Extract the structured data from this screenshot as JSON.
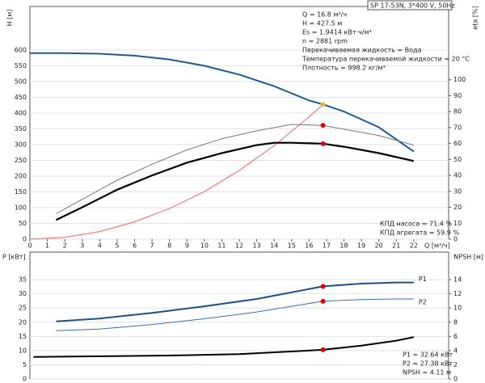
{
  "chart_data": [
    {
      "type": "line",
      "title": "SP 17-53N, 3*400 V, 50Hz",
      "annotations": [
        "Q = 16.8 м³/ч",
        "H = 427.5 м",
        "Es = 1.9414 кВт·ч/м³",
        "n = 2881 rpm",
        "Перекачиваемая жидкость = Вода",
        "Температура перекачиваемой жидкости = 20 °C",
        "Плотность = 998.2 кг/м³"
      ],
      "notes": [
        "КПД насоса = 71.4 %",
        "КПД агрегата = 59.9 %"
      ],
      "xlabel": "Q [м³/ч]",
      "ylabel": "H [м]",
      "y2label": "eta [%]",
      "xlim": [
        0,
        24
      ],
      "ylim": [
        0,
        738
      ],
      "y2lim": [
        0,
        146
      ],
      "xticks": [
        0,
        1,
        2,
        3,
        4,
        5,
        6,
        7,
        8,
        9,
        10,
        11,
        12,
        13,
        14,
        15,
        16,
        17,
        18,
        19,
        20,
        21,
        22
      ],
      "yticks": [
        0,
        50,
        100,
        150,
        200,
        250,
        300,
        350,
        400,
        450,
        500,
        550,
        600
      ],
      "y2ticks": [
        0,
        10,
        20,
        30,
        40,
        50,
        60,
        70,
        80,
        90,
        100
      ],
      "grid": true,
      "operating_x": 16.8,
      "series": [
        {
          "color": "#1f5a96",
          "width": 2,
          "marker_color": "#f5c030",
          "x": [
            0,
            2,
            4,
            6,
            8,
            10,
            12,
            14,
            16,
            16.8,
            18,
            20,
            22
          ],
          "values": [
            590,
            590,
            588,
            582,
            570,
            550,
            522,
            485,
            440,
            427.5,
            405,
            355,
            278
          ]
        },
        {
          "color": "#ff6060",
          "width": 1,
          "x": [
            0,
            2,
            4,
            6,
            8,
            10,
            12,
            14,
            16,
            16.8
          ],
          "values": [
            0,
            6,
            24,
            55,
            97,
            151,
            218,
            297,
            388,
            427.5
          ]
        },
        {
          "color": "#777777",
          "width": 1,
          "axis": "y2",
          "marker_color": "#e00000",
          "x": [
            1.5,
            3,
            5,
            7,
            9,
            11,
            13,
            15,
            16.8,
            18,
            20,
            22
          ],
          "values": [
            16,
            25,
            37,
            47,
            56,
            63,
            68,
            72,
            71.4,
            69,
            65,
            59
          ]
        },
        {
          "color": "#000000",
          "width": 2.2,
          "axis": "y2",
          "marker_color": "#e00000",
          "x": [
            1.5,
            3,
            5,
            7,
            9,
            11,
            13,
            14,
            15,
            16.8,
            18,
            20,
            22
          ],
          "values": [
            12,
            20,
            31,
            40,
            48,
            54,
            59,
            60.5,
            60.5,
            59.9,
            58,
            54,
            49
          ]
        }
      ]
    },
    {
      "type": "line",
      "notes": [
        "P1 = 32.64 кВт",
        "P2 = 27.38 кВт",
        "NPSH = 4.11 м"
      ],
      "ylabel": "P [кВт]",
      "y2label": "NPSH [м]",
      "xlim": [
        0,
        24
      ],
      "ylim": [
        0,
        44.7
      ],
      "y2lim": [
        0,
        17.88
      ],
      "yticks": [
        0,
        5,
        10,
        15,
        20,
        25,
        30,
        35
      ],
      "y2ticks": [
        0,
        2,
        4,
        6,
        8,
        10,
        12,
        14
      ],
      "grid": true,
      "operating_x": 16.8,
      "series": [
        {
          "name": "P1",
          "color": "#1f4f8a",
          "width": 2,
          "marker_color": "#e00000",
          "x": [
            1.5,
            4,
            7,
            10,
            13,
            16.8,
            19,
            21,
            22
          ],
          "values": [
            20.3,
            21.3,
            23.3,
            25.6,
            28.2,
            32.64,
            33.6,
            34,
            34
          ]
        },
        {
          "name": "P2",
          "color": "#3a6fb0",
          "width": 1,
          "marker_color": "#e00000",
          "x": [
            1.5,
            4,
            7,
            10,
            13,
            16.8,
            19,
            21,
            22
          ],
          "values": [
            17,
            17.6,
            19.2,
            21.2,
            23.6,
            27.38,
            28,
            28.2,
            28.2
          ]
        },
        {
          "color": "#000000",
          "width": 2,
          "axis": "y2",
          "marker_color": "#e00000",
          "x": [
            0.2,
            4,
            8,
            12,
            16.8,
            19,
            21,
            22
          ],
          "values": [
            3.1,
            3.2,
            3.3,
            3.5,
            4.11,
            4.7,
            5.4,
            5.9
          ]
        }
      ]
    }
  ]
}
